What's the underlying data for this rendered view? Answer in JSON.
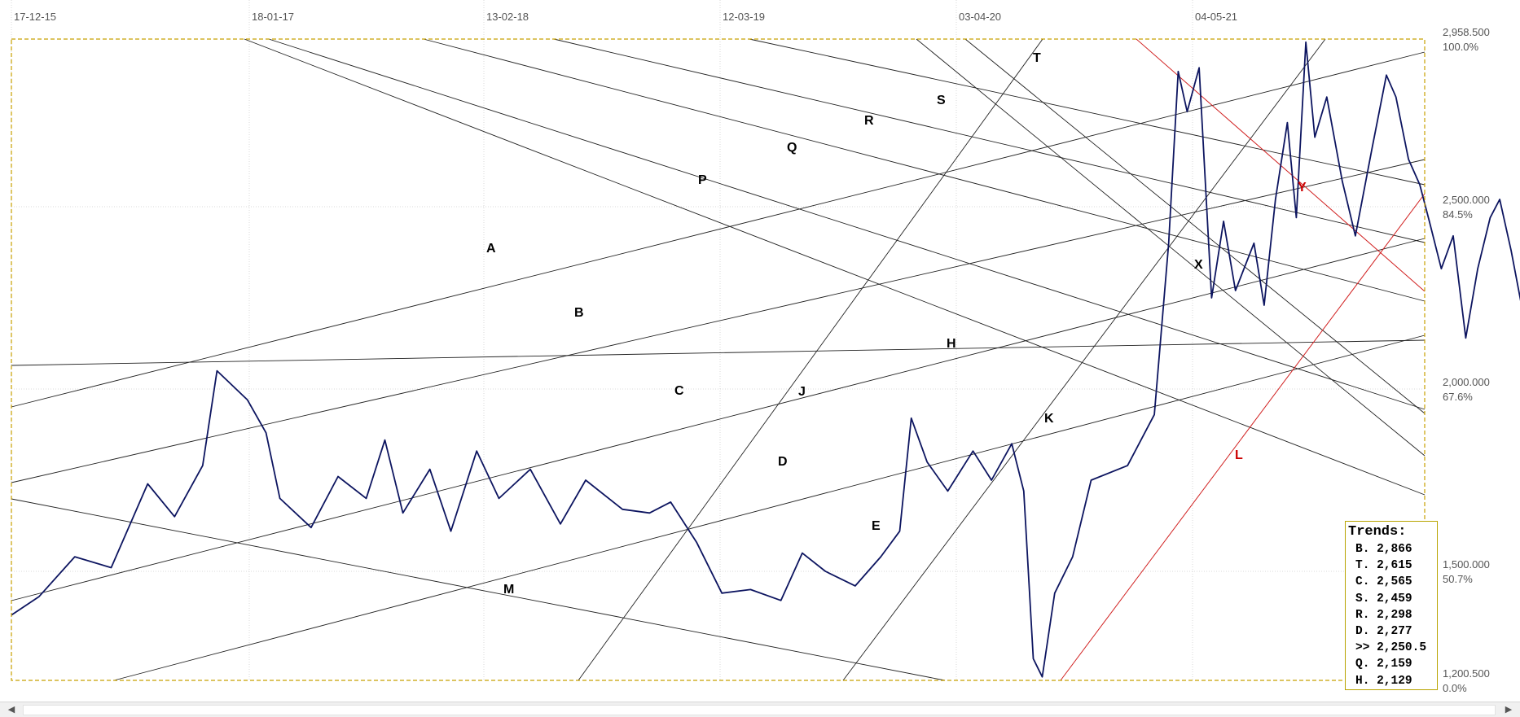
{
  "chart_data": {
    "type": "line",
    "x_ticks": [
      "17-12-15",
      "18-01-17",
      "13-02-18",
      "12-03-19",
      "03-04-20",
      "04-05-21"
    ],
    "y_ticks": [
      {
        "value": "2,958.500",
        "pct": "100.0%"
      },
      {
        "value": "2,500.000",
        "pct": "84.5%"
      },
      {
        "value": "2,000.000",
        "pct": "67.6%"
      },
      {
        "value": "1,500.000",
        "pct": "50.7%"
      },
      {
        "value": "1,200.500",
        "pct": "0.0%"
      }
    ],
    "ylim": [
      1200.5,
      2958.5
    ],
    "series": [
      {
        "points": [
          [
            "2015-12-17",
            1380
          ],
          [
            "2016-02-01",
            1430
          ],
          [
            "2016-04-01",
            1540
          ],
          [
            "2016-06-01",
            1510
          ],
          [
            "2016-08-01",
            1740
          ],
          [
            "2016-09-15",
            1650
          ],
          [
            "2016-11-01",
            1790
          ],
          [
            "2016-11-25",
            2050
          ],
          [
            "2017-01-15",
            1970
          ],
          [
            "2017-02-15",
            1880
          ],
          [
            "2017-03-10",
            1700
          ],
          [
            "2017-05-01",
            1620
          ],
          [
            "2017-06-15",
            1760
          ],
          [
            "2017-08-01",
            1700
          ],
          [
            "2017-09-01",
            1860
          ],
          [
            "2017-10-01",
            1660
          ],
          [
            "2017-11-15",
            1780
          ],
          [
            "2017-12-20",
            1610
          ],
          [
            "2018-02-01",
            1830
          ],
          [
            "2018-03-10",
            1700
          ],
          [
            "2018-05-01",
            1780
          ],
          [
            "2018-06-20",
            1630
          ],
          [
            "2018-08-01",
            1750
          ],
          [
            "2018-10-01",
            1670
          ],
          [
            "2018-11-15",
            1660
          ],
          [
            "2018-12-20",
            1690
          ],
          [
            "2019-02-01",
            1580
          ],
          [
            "2019-03-15",
            1440
          ],
          [
            "2019-05-01",
            1450
          ],
          [
            "2019-06-20",
            1420
          ],
          [
            "2019-07-25",
            1550
          ],
          [
            "2019-09-01",
            1500
          ],
          [
            "2019-10-20",
            1460
          ],
          [
            "2019-12-01",
            1540
          ],
          [
            "2020-01-01",
            1610
          ],
          [
            "2020-01-20",
            1920
          ],
          [
            "2020-02-15",
            1800
          ],
          [
            "2020-03-20",
            1720
          ],
          [
            "2020-05-01",
            1830
          ],
          [
            "2020-06-01",
            1750
          ],
          [
            "2020-07-05",
            1850
          ],
          [
            "2020-07-25",
            1720
          ],
          [
            "2020-08-10",
            1260
          ],
          [
            "2020-08-25",
            1210
          ],
          [
            "2020-09-15",
            1440
          ],
          [
            "2020-10-15",
            1540
          ],
          [
            "2020-11-15",
            1750
          ],
          [
            "2021-01-15",
            1790
          ],
          [
            "2021-03-01",
            1930
          ],
          [
            "2021-03-25",
            2400
          ],
          [
            "2021-04-10",
            2870
          ],
          [
            "2021-04-25",
            2760
          ],
          [
            "2021-05-15",
            2880
          ],
          [
            "2021-06-05",
            2250
          ],
          [
            "2021-06-25",
            2460
          ],
          [
            "2021-07-15",
            2270
          ],
          [
            "2021-08-15",
            2400
          ],
          [
            "2021-09-01",
            2230
          ],
          [
            "2021-09-20",
            2520
          ],
          [
            "2021-10-10",
            2730
          ],
          [
            "2021-10-25",
            2470
          ],
          [
            "2021-11-10",
            2950
          ],
          [
            "2021-11-25",
            2690
          ],
          [
            "2021-12-15",
            2800
          ],
          [
            "2022-01-10",
            2570
          ],
          [
            "2022-02-01",
            2420
          ],
          [
            "2022-03-01",
            2660
          ],
          [
            "2022-03-25",
            2860
          ],
          [
            "2022-04-10",
            2800
          ],
          [
            "2022-05-01",
            2630
          ],
          [
            "2022-05-20",
            2560
          ],
          [
            "2022-06-05",
            2460
          ],
          [
            "2022-06-25",
            2330
          ],
          [
            "2022-07-15",
            2420
          ],
          [
            "2022-08-05",
            2140
          ],
          [
            "2022-08-25",
            2330
          ],
          [
            "2022-09-15",
            2470
          ],
          [
            "2022-10-01",
            2520
          ],
          [
            "2022-10-20",
            2380
          ],
          [
            "2022-11-10",
            2200
          ],
          [
            "2022-12-01",
            2300
          ],
          [
            "2022-12-20",
            2220
          ],
          [
            "2023-01-05",
            2430
          ],
          [
            "2023-01-25",
            2250
          ]
        ]
      }
    ],
    "trendline_labels": [
      {
        "text": "A",
        "color": "#000000"
      },
      {
        "text": "B",
        "color": "#000000"
      },
      {
        "text": "C",
        "color": "#000000"
      },
      {
        "text": "D",
        "color": "#000000"
      },
      {
        "text": "E",
        "color": "#000000"
      },
      {
        "text": "H",
        "color": "#000000"
      },
      {
        "text": "J",
        "color": "#000000"
      },
      {
        "text": "K",
        "color": "#000000"
      },
      {
        "text": "M",
        "color": "#000000"
      },
      {
        "text": "P",
        "color": "#000000"
      },
      {
        "text": "Q",
        "color": "#000000"
      },
      {
        "text": "R",
        "color": "#000000"
      },
      {
        "text": "S",
        "color": "#000000"
      },
      {
        "text": "T",
        "color": "#000000"
      },
      {
        "text": "X",
        "color": "#000000"
      },
      {
        "text": "Y",
        "color": "#cc0000"
      },
      {
        "text": "L",
        "color": "#cc0000"
      }
    ],
    "grid": true,
    "line_color": "#0d1560",
    "frame_color": "#c8a000"
  },
  "trends": {
    "title": "Trends:",
    "rows": [
      "B. 2,866",
      "T. 2,615",
      "C. 2,565",
      "S. 2,459",
      "R. 2,298",
      "D. 2,277",
      ">> 2,250.5",
      "Q. 2,159",
      "H. 2,129"
    ]
  },
  "scrollbar": {
    "left_arrow": "◀",
    "right_arrow": "▶"
  }
}
